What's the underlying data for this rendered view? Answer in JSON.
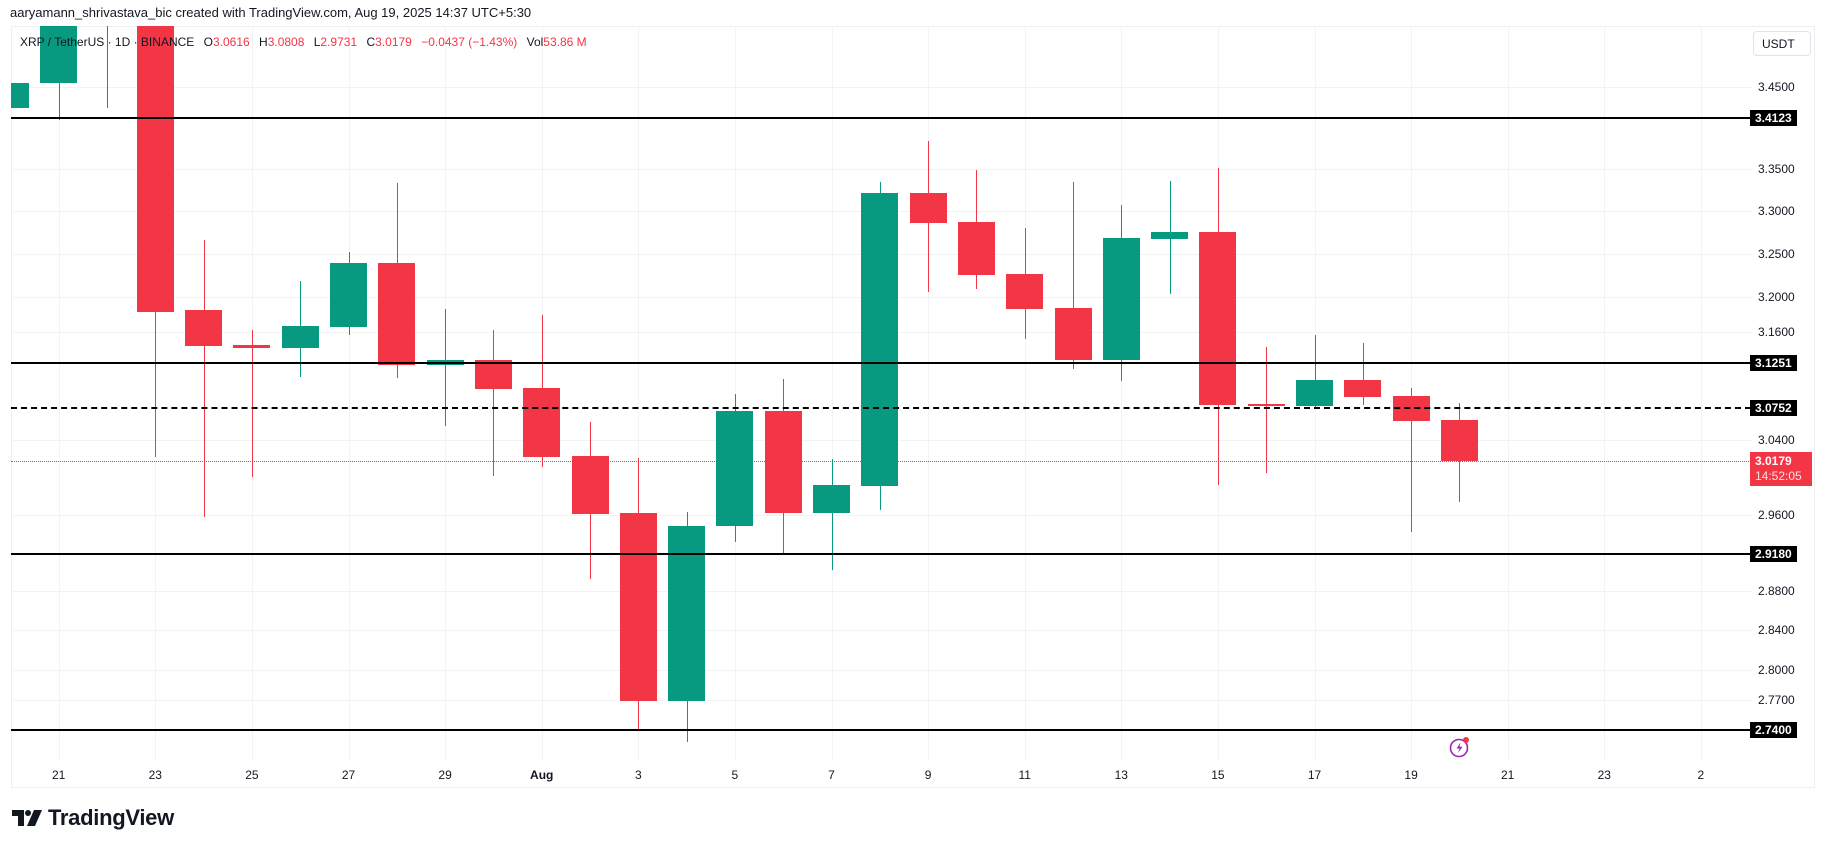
{
  "header": {
    "credit": "aaryamann_shrivastava_bic created with TradingView.com, Aug 19, 2025 14:37 UTC+5:30"
  },
  "legend": {
    "symbol": "XRP / TetherUS · 1D · BINANCE",
    "open_label": "O",
    "open": "3.0616",
    "high_label": "H",
    "high": "3.0808",
    "low_label": "L",
    "low": "2.9731",
    "close_label": "C",
    "close": "3.0179",
    "change": "−0.0437 (−1.43%)",
    "vol_label": "Vol",
    "vol": "53.86 M"
  },
  "price_axis": {
    "currency_button": "USDT",
    "ticks": [
      "3.4500",
      "3.3500",
      "3.3000",
      "3.2500",
      "3.2000",
      "3.1600",
      "3.0400",
      "2.9600",
      "2.8800",
      "2.8400",
      "2.8000",
      "2.7700"
    ],
    "level_tags": [
      "3.4123",
      "3.1251",
      "3.0752",
      "2.9180",
      "2.7400"
    ],
    "last_price": "3.0179",
    "countdown": "14:52:05"
  },
  "time_axis": {
    "labels": [
      "21",
      "23",
      "25",
      "27",
      "29",
      "Aug",
      "3",
      "5",
      "7",
      "9",
      "11",
      "13",
      "15",
      "17",
      "19",
      "21",
      "23",
      "2"
    ]
  },
  "branding": {
    "logo_text": "TradingView"
  },
  "colors": {
    "up": "#089981",
    "down": "#f23645",
    "level_line": "#000000",
    "grid": "#f2f3f5",
    "alert_icon": "#9c27b0"
  },
  "chart_data": {
    "type": "candlestick",
    "title": "XRP / TetherUS · 1D · BINANCE",
    "ylabel": "USDT",
    "y_scale": "log",
    "ylim": [
      2.7,
      3.53
    ],
    "categories": [
      "Jul 20",
      "Jul 21",
      "Jul 22",
      "Jul 23",
      "Jul 24",
      "Jul 25",
      "Jul 26",
      "Jul 27",
      "Jul 28",
      "Jul 29",
      "Jul 30",
      "Jul 31",
      "Aug 1",
      "Aug 2",
      "Aug 3",
      "Aug 4",
      "Aug 5",
      "Aug 6",
      "Aug 7",
      "Aug 8",
      "Aug 9",
      "Aug 10",
      "Aug 11",
      "Aug 12",
      "Aug 13",
      "Aug 14",
      "Aug 15",
      "Aug 16",
      "Aug 17",
      "Aug 18",
      "Aug 19"
    ],
    "candles": [
      {
        "d": "Jul 20",
        "o": 3.424,
        "h": 3.53,
        "l": 3.388,
        "c": 3.455
      },
      {
        "d": "Jul 21",
        "o": 3.455,
        "h": 3.6,
        "l": 3.41,
        "c": 3.6
      },
      {
        "d": "Jul 22",
        "o": 3.6,
        "h": 3.65,
        "l": 3.424,
        "c": 3.6
      },
      {
        "d": "Jul 23",
        "o": 3.6,
        "h": 3.65,
        "l": 3.022,
        "c": 3.183
      },
      {
        "d": "Jul 24",
        "o": 3.185,
        "h": 3.266,
        "l": 2.957,
        "c": 3.144
      },
      {
        "d": "Jul 25",
        "o": 3.146,
        "h": 3.162,
        "l": 3.0,
        "c": 3.142
      },
      {
        "d": "Jul 26",
        "o": 3.142,
        "h": 3.218,
        "l": 3.11,
        "c": 3.167
      },
      {
        "d": "Jul 27",
        "o": 3.166,
        "h": 3.252,
        "l": 3.157,
        "c": 3.239
      },
      {
        "d": "Jul 28",
        "o": 3.239,
        "h": 3.334,
        "l": 3.108,
        "c": 3.123
      },
      {
        "d": "Jul 29",
        "o": 3.123,
        "h": 3.186,
        "l": 3.055,
        "c": 3.129
      },
      {
        "d": "Jul 30",
        "o": 3.129,
        "h": 3.162,
        "l": 3.001,
        "c": 3.096
      },
      {
        "d": "Jul 31",
        "o": 3.097,
        "h": 3.179,
        "l": 3.011,
        "c": 3.022
      },
      {
        "d": "Aug 1",
        "o": 3.023,
        "h": 3.06,
        "l": 2.892,
        "c": 2.961
      },
      {
        "d": "Aug 2",
        "o": 2.962,
        "h": 3.021,
        "l": 2.741,
        "c": 2.769
      },
      {
        "d": "Aug 3",
        "o": 2.769,
        "h": 2.963,
        "l": 2.728,
        "c": 2.948
      },
      {
        "d": "Aug 4",
        "o": 2.948,
        "h": 3.091,
        "l": 2.931,
        "c": 3.072
      },
      {
        "d": "Aug 5",
        "o": 3.072,
        "h": 3.107,
        "l": 2.917,
        "c": 2.962
      },
      {
        "d": "Aug 6",
        "o": 2.962,
        "h": 3.02,
        "l": 2.902,
        "c": 2.992
      },
      {
        "d": "Aug 7",
        "o": 2.991,
        "h": 3.335,
        "l": 2.965,
        "c": 3.321
      },
      {
        "d": "Aug 8",
        "o": 3.321,
        "h": 3.384,
        "l": 3.206,
        "c": 3.286
      },
      {
        "d": "Aug 9",
        "o": 3.287,
        "h": 3.349,
        "l": 3.209,
        "c": 3.225
      },
      {
        "d": "Aug 10",
        "o": 3.227,
        "h": 3.28,
        "l": 3.152,
        "c": 3.186
      },
      {
        "d": "Aug 11",
        "o": 3.187,
        "h": 3.335,
        "l": 3.119,
        "c": 3.129
      },
      {
        "d": "Aug 12",
        "o": 3.129,
        "h": 3.307,
        "l": 3.105,
        "c": 3.268
      },
      {
        "d": "Aug 13",
        "o": 3.267,
        "h": 3.336,
        "l": 3.203,
        "c": 3.275
      },
      {
        "d": "Aug 14",
        "o": 3.275,
        "h": 3.352,
        "l": 2.992,
        "c": 3.079
      },
      {
        "d": "Aug 15",
        "o": 3.08,
        "h": 3.143,
        "l": 3.004,
        "c": 3.078
      },
      {
        "d": "Aug 16",
        "o": 3.078,
        "h": 3.157,
        "l": 3.075,
        "c": 3.106
      },
      {
        "d": "Aug 17",
        "o": 3.106,
        "h": 3.148,
        "l": 3.078,
        "c": 3.087
      },
      {
        "d": "Aug 18",
        "o": 3.088,
        "h": 3.097,
        "l": 2.942,
        "c": 3.061
      },
      {
        "d": "Aug 19",
        "o": 3.0616,
        "h": 3.0808,
        "l": 2.9731,
        "c": 3.0179
      }
    ],
    "horizontal_levels": [
      {
        "price": 3.4123,
        "style": "solid"
      },
      {
        "price": 3.1251,
        "style": "solid"
      },
      {
        "price": 3.0752,
        "style": "dashed"
      },
      {
        "price": 2.918,
        "style": "solid"
      },
      {
        "price": 2.74,
        "style": "solid"
      }
    ],
    "last_price": 3.0179,
    "legend_position": "top-left"
  }
}
